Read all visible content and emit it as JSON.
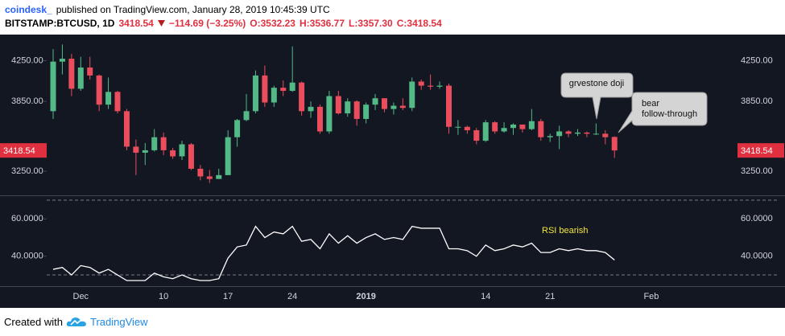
{
  "header": {
    "author": "coindesk_",
    "published": "published on TradingView.com, January 28, 2019 10:45:39 UTC",
    "symbol": "BITSTAMP:BTCUSD, 1D",
    "last": "3418.54",
    "change": "−114.69 (−3.25%)",
    "open": "O:3532.23",
    "high": "H:3536.77",
    "low": "L:3357.30",
    "close": "C:3418.54"
  },
  "footer": {
    "text": "Created with",
    "brand": "TradingView"
  },
  "chart_data": [
    {
      "type": "candlestick",
      "log": true,
      "up_color": "#53b987",
      "down_color": "#eb4d5c",
      "x": [
        "2018-11-28",
        "2018-11-29",
        "2018-11-30",
        "2018-12-01",
        "2018-12-02",
        "2018-12-03",
        "2018-12-04",
        "2018-12-05",
        "2018-12-06",
        "2018-12-07",
        "2018-12-08",
        "2018-12-09",
        "2018-12-10",
        "2018-12-11",
        "2018-12-12",
        "2018-12-13",
        "2018-12-14",
        "2018-12-15",
        "2018-12-16",
        "2018-12-17",
        "2018-12-18",
        "2018-12-19",
        "2018-12-20",
        "2018-12-21",
        "2018-12-22",
        "2018-12-23",
        "2018-12-24",
        "2018-12-25",
        "2018-12-26",
        "2018-12-27",
        "2018-12-28",
        "2018-12-29",
        "2018-12-30",
        "2018-12-31",
        "2019-01-01",
        "2019-01-02",
        "2019-01-03",
        "2019-01-04",
        "2019-01-05",
        "2019-01-06",
        "2019-01-07",
        "2019-01-08",
        "2019-01-09",
        "2019-01-10",
        "2019-01-11",
        "2019-01-12",
        "2019-01-13",
        "2019-01-14",
        "2019-01-15",
        "2019-01-16",
        "2019-01-17",
        "2019-01-18",
        "2019-01-19",
        "2019-01-20",
        "2019-01-21",
        "2019-01-22",
        "2019-01-23",
        "2019-01-24",
        "2019-01-25",
        "2019-01-26",
        "2019-01-27",
        "2019-01-28"
      ],
      "open": [
        3760,
        4240,
        4270,
        3970,
        4180,
        4100,
        3820,
        3940,
        3760,
        3450,
        3400,
        3420,
        3530,
        3420,
        3370,
        3470,
        3270,
        3210,
        3190,
        3220,
        3530,
        3680,
        3760,
        4100,
        3840,
        3980,
        3950,
        4030,
        3760,
        3800,
        3580,
        3900,
        3740,
        3850,
        3690,
        3820,
        3880,
        3780,
        3810,
        3790,
        4040,
        4000,
        3990,
        4000,
        3620,
        3620,
        3590,
        3500,
        3660,
        3580,
        3610,
        3640,
        3600,
        3670,
        3530,
        3540,
        3580,
        3560,
        3570,
        3560,
        3560,
        3532.23
      ],
      "high": [
        4370,
        4420,
        4320,
        4290,
        4290,
        4110,
        4080,
        3950,
        3780,
        3510,
        3480,
        3600,
        3570,
        3440,
        3500,
        3480,
        3300,
        3260,
        3270,
        3590,
        3690,
        3920,
        4150,
        4200,
        4000,
        4050,
        4400,
        4040,
        3850,
        3820,
        3950,
        3950,
        3880,
        3860,
        3840,
        3920,
        3880,
        3840,
        3880,
        4080,
        4060,
        4110,
        4040,
        4020,
        3680,
        3630,
        3610,
        3680,
        3670,
        3660,
        3650,
        3640,
        3780,
        3690,
        3560,
        3630,
        3590,
        3600,
        3580,
        3650,
        3590,
        3536.77
      ],
      "low": [
        3690,
        4110,
        3900,
        3950,
        4060,
        3760,
        3780,
        3740,
        3420,
        3220,
        3300,
        3410,
        3380,
        3350,
        3340,
        3260,
        3180,
        3160,
        3190,
        3220,
        3450,
        3670,
        3740,
        3800,
        3800,
        3900,
        3940,
        3720,
        3700,
        3560,
        3560,
        3730,
        3710,
        3630,
        3650,
        3770,
        3750,
        3730,
        3770,
        3760,
        3960,
        3960,
        3970,
        3560,
        3550,
        3560,
        3470,
        3490,
        3560,
        3570,
        3550,
        3570,
        3590,
        3500,
        3490,
        3430,
        3530,
        3540,
        3530,
        3550,
        3470,
        3357.3
      ],
      "close": [
        4240,
        4270,
        3970,
        4180,
        4100,
        3820,
        3940,
        3760,
        3450,
        3400,
        3420,
        3530,
        3420,
        3370,
        3470,
        3270,
        3210,
        3190,
        3220,
        3530,
        3680,
        3760,
        4100,
        3840,
        3980,
        3950,
        4030,
        3760,
        3800,
        3580,
        3900,
        3740,
        3850,
        3690,
        3820,
        3880,
        3780,
        3810,
        3790,
        4040,
        4000,
        3990,
        4000,
        3620,
        3620,
        3590,
        3500,
        3660,
        3580,
        3610,
        3640,
        3600,
        3670,
        3530,
        3540,
        3580,
        3560,
        3570,
        3560,
        3560,
        3530,
        3418.54
      ],
      "ylim": [
        3066,
        4510
      ],
      "yticks": [
        {
          "value": 3250,
          "label": "3250.00"
        },
        {
          "value": 3850,
          "label": "3850.00"
        },
        {
          "value": 4250,
          "label": "4250.00"
        }
      ],
      "xticks": [
        {
          "value": "2018-12-01",
          "label": "Dec"
        },
        {
          "value": "2018-12-10",
          "label": "10"
        },
        {
          "value": "2018-12-17",
          "label": "17"
        },
        {
          "value": "2018-12-24",
          "label": "24"
        },
        {
          "value": "2019-01-01",
          "label": "2019"
        },
        {
          "value": "2019-01-14",
          "label": "14"
        },
        {
          "value": "2019-01-21",
          "label": "21"
        },
        {
          "value": "2019-02-01",
          "label": "Feb"
        }
      ],
      "annotations": [
        {
          "lines": [
            "grvestone doji"
          ]
        },
        {
          "lines": [
            "bear",
            "follow-through"
          ]
        }
      ]
    },
    {
      "type": "line",
      "color": "#ffffff",
      "values": [
        33,
        34,
        30,
        35,
        34,
        31,
        33,
        30,
        27,
        27,
        27,
        31,
        29,
        28,
        30,
        28,
        27,
        27,
        28,
        39,
        45,
        46,
        56,
        50,
        53,
        52,
        56,
        48,
        49,
        44,
        52,
        47,
        51,
        47,
        50,
        52,
        49,
        50,
        49,
        56,
        55,
        55,
        55,
        44,
        44,
        43,
        40,
        46,
        43,
        44,
        46,
        45,
        47,
        42,
        42,
        44,
        43,
        44,
        43,
        43,
        42,
        38
      ],
      "ylim": [
        24,
        72.6
      ],
      "yticks": [
        {
          "value": 40,
          "label": "40.0000"
        },
        {
          "value": 60,
          "label": "60.0000"
        }
      ],
      "hlines": [
        30,
        70
      ],
      "annotation": "RSI bearish",
      "annotation_color": "#f5e63a"
    }
  ]
}
